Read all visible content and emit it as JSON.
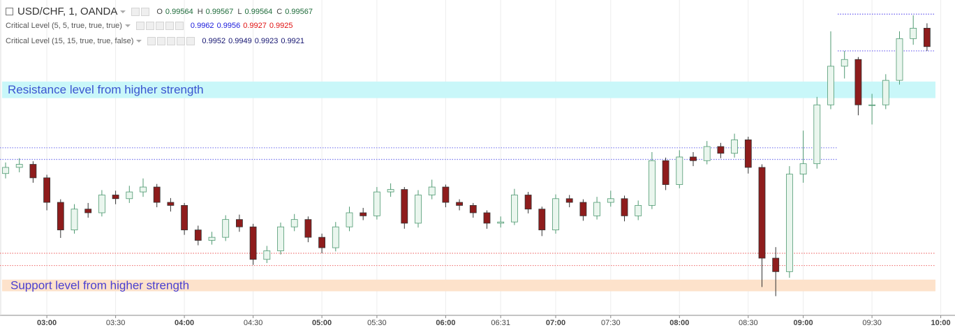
{
  "chart_data": {
    "type": "candlestick",
    "title": "USD/CHF, 1, OANDA",
    "ohlc_labels": [
      "O",
      "H",
      "L",
      "C"
    ],
    "ohlc_values": [
      0.99564,
      0.99567,
      0.99564,
      0.99567
    ],
    "ohlc_color": "#1e6b3a",
    "indicators": [
      {
        "name": "Critical Level (5, 5, true, true, true)",
        "values": [
          0.9962,
          0.9956,
          0.9927,
          0.9925
        ],
        "colors": [
          "#1a1adb",
          "#1a1adb",
          "#e01010",
          "#e01010"
        ],
        "line_color": "#6a5cf0"
      },
      {
        "name": "Critical Level (15, 15, true, true, false)",
        "values": [
          0.9952,
          0.9949,
          0.9923,
          0.9921
        ],
        "colors": [
          "#141470",
          "#141470",
          "#141470",
          "#141470"
        ],
        "line_color": "#f07878"
      }
    ],
    "levels": [
      0.99402,
      0.99383
    ],
    "levels_color": "#7a7aee",
    "zones": [
      {
        "label": "Resistance level from higher strength",
        "from": 0.99483,
        "to": 0.9951,
        "color": "#c9f7f9",
        "text_color": "#3a55d0"
      },
      {
        "label": "Support level from higher strength",
        "from": 0.99168,
        "to": 0.99187,
        "color": "#fde2cb",
        "text_color": "#4a3fd0"
      }
    ],
    "categories": [
      null,
      null,
      null,
      "03:00",
      null,
      null,
      null,
      null,
      "03:30",
      null,
      null,
      null,
      null,
      "04:00",
      null,
      null,
      null,
      null,
      "04:30",
      null,
      null,
      null,
      null,
      "05:00",
      null,
      null,
      null,
      "05:30",
      null,
      null,
      null,
      null,
      "06:00",
      null,
      null,
      null,
      "06:31",
      null,
      null,
      null,
      "07:00",
      null,
      null,
      null,
      "07:30",
      null,
      null,
      null,
      null,
      "08:00",
      null,
      null,
      null,
      null,
      "08:30",
      null,
      null,
      null,
      "09:00",
      null,
      null,
      null,
      null,
      "09:30",
      null,
      null,
      null,
      null,
      "10:00"
    ],
    "open": [
      0.9936,
      0.9937,
      0.99375,
      0.99353,
      0.99313,
      0.99268,
      0.99302,
      0.99296,
      0.99325,
      0.99319,
      0.9933,
      0.99338,
      0.99313,
      0.99308,
      0.99268,
      0.99251,
      0.99256,
      0.99285,
      0.99273,
      0.9922,
      0.99234,
      0.99273,
      0.99285,
      0.99256,
      0.99239,
      0.99273,
      0.99296,
      0.99291,
      0.9933,
      0.99334,
      0.99279,
      0.99325,
      0.99338,
      0.99313,
      0.99308,
      0.99296,
      0.99279,
      0.99281,
      0.99325,
      0.99302,
      0.99268,
      0.99319,
      0.99313,
      0.99291,
      0.99313,
      0.99319,
      0.99291,
      0.99308,
      0.99381,
      0.99342,
      0.99387,
      0.99381,
      0.99404,
      0.99393,
      0.99415,
      0.9937,
      0.99222,
      0.992,
      0.99359,
      0.99376,
      0.99472,
      0.99535,
      0.99546,
      0.99472,
      0.99472,
      0.99512,
      0.9958,
      0.99597,
      null
    ],
    "high": [
      0.99378,
      0.99385,
      0.9938,
      0.99358,
      0.99318,
      0.9931,
      0.99312,
      0.99333,
      0.99332,
      0.9934,
      0.99352,
      0.99343,
      0.9932,
      0.99312,
      0.99275,
      0.99265,
      0.99292,
      0.99293,
      0.99278,
      0.99242,
      0.9928,
      0.99294,
      0.9929,
      0.99262,
      0.99281,
      0.99306,
      0.99304,
      0.99338,
      0.99344,
      0.99338,
      0.99333,
      0.9935,
      0.99342,
      0.99318,
      0.99312,
      0.993,
      0.9929,
      0.99335,
      0.9933,
      0.99306,
      0.99326,
      0.99325,
      0.99318,
      0.99322,
      0.99332,
      0.99324,
      0.99316,
      0.99395,
      0.99386,
      0.99398,
      0.99395,
      0.99413,
      0.9941,
      0.99425,
      0.9942,
      0.99375,
      0.9924,
      0.99372,
      0.9943,
      0.99485,
      0.99592,
      0.9956,
      0.9955,
      0.9949,
      0.99522,
      0.99592,
      0.99618,
      0.99605,
      null
    ],
    "low": [
      0.99352,
      0.99362,
      0.99345,
      0.993,
      0.99255,
      0.99262,
      0.99288,
      0.9929,
      0.9931,
      0.99312,
      0.99322,
      0.99305,
      0.99298,
      0.9926,
      0.99243,
      0.99244,
      0.9925,
      0.99265,
      0.99211,
      0.99214,
      0.99228,
      0.99266,
      0.99248,
      0.9923,
      0.99233,
      0.99266,
      0.99284,
      0.99285,
      0.99322,
      0.9927,
      0.99272,
      0.99318,
      0.99305,
      0.993,
      0.99288,
      0.9927,
      0.99272,
      0.99276,
      0.99295,
      0.99258,
      0.99262,
      0.99305,
      0.99283,
      0.99285,
      0.99306,
      0.99282,
      0.99284,
      0.99302,
      0.99333,
      0.99336,
      0.99372,
      0.99375,
      0.99385,
      0.99386,
      0.9936,
      0.99175,
      0.9916,
      0.9919,
      0.99345,
      0.99368,
      0.99465,
      0.99515,
      0.99455,
      0.9944,
      0.99465,
      0.99505,
      0.9957,
      0.9956,
      null
    ],
    "close": [
      0.9937,
      0.99375,
      0.99353,
      0.99313,
      0.99268,
      0.99302,
      0.99296,
      0.99325,
      0.99319,
      0.9933,
      0.99338,
      0.99313,
      0.99308,
      0.99268,
      0.99251,
      0.99256,
      0.99285,
      0.99273,
      0.9922,
      0.99234,
      0.99273,
      0.99285,
      0.99256,
      0.99239,
      0.99273,
      0.99296,
      0.99291,
      0.9933,
      0.99334,
      0.99279,
      0.99325,
      0.99338,
      0.99313,
      0.99308,
      0.99296,
      0.99279,
      0.99281,
      0.99325,
      0.99302,
      0.99268,
      0.99319,
      0.99313,
      0.99291,
      0.99313,
      0.99319,
      0.99291,
      0.99308,
      0.99381,
      0.99342,
      0.99387,
      0.99381,
      0.99404,
      0.99393,
      0.99415,
      0.9937,
      0.99222,
      0.992,
      0.99359,
      0.99376,
      0.99472,
      0.99535,
      0.99546,
      0.99472,
      0.99472,
      0.99512,
      0.9958,
      0.99597,
      0.99567,
      null
    ],
    "up_color": "#4f9a72",
    "up_fill": "#eaf6ee",
    "down_color": "#8e1c1c",
    "ylim": [
      0.99131,
      0.99643
    ],
    "grid": true
  }
}
